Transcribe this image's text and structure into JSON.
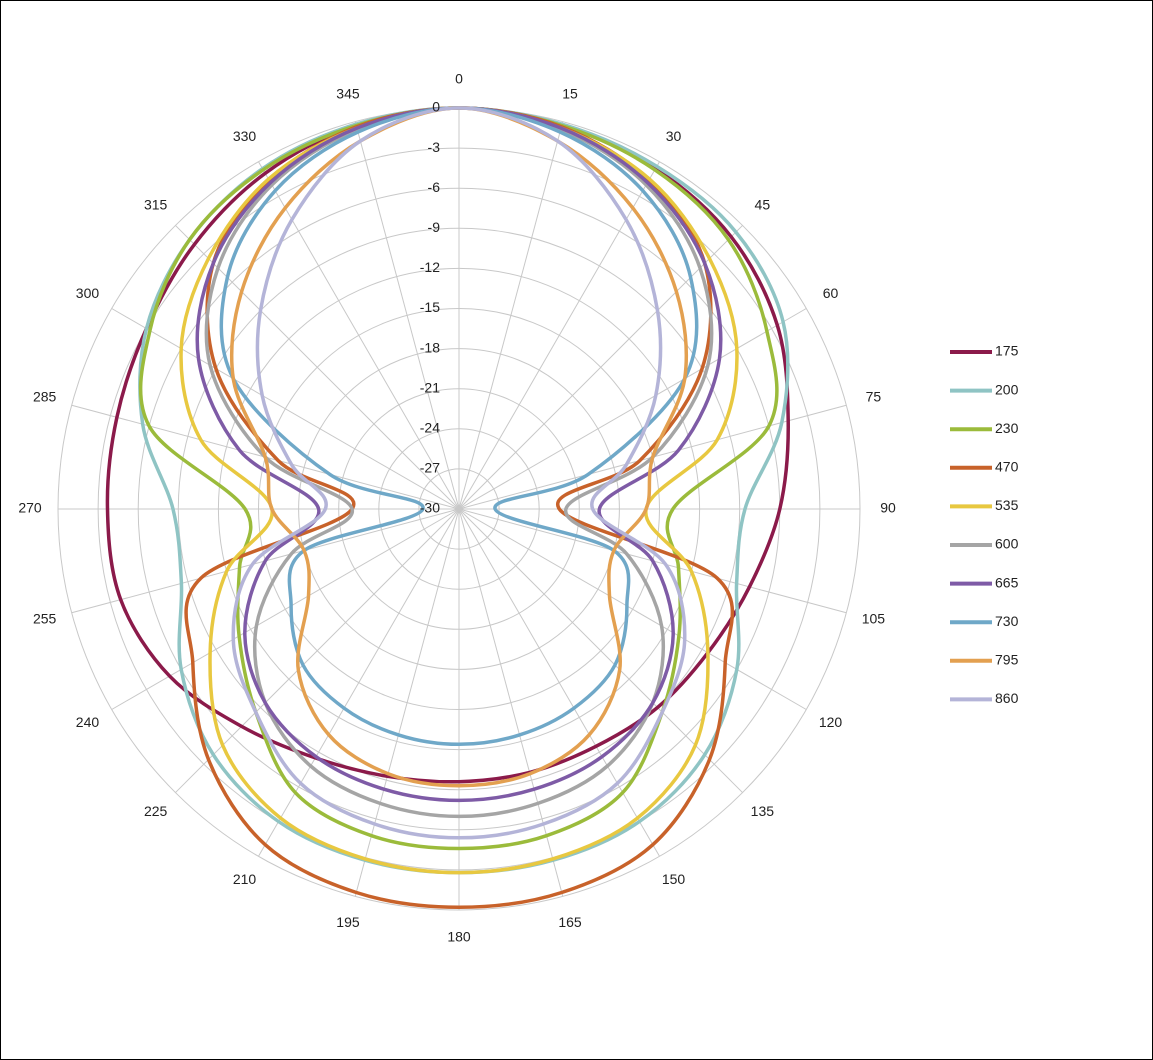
{
  "chart_data": {
    "type": "polar",
    "angles": [
      0,
      15,
      30,
      45,
      60,
      75,
      90,
      105,
      120,
      135,
      150,
      165,
      180,
      195,
      210,
      225,
      240,
      255,
      270,
      285,
      300,
      315,
      330,
      345
    ],
    "rlim": [
      -30,
      0
    ],
    "rticks": [
      -30,
      -27,
      -24,
      -21,
      -18,
      -15,
      -12,
      -9,
      -6,
      -3,
      0
    ],
    "grid": true,
    "legend": "right",
    "series": [
      {
        "name": "175",
        "color": "#8b1a4a",
        "values": [
          0,
          -0.3,
          -0.6,
          -1.2,
          -2.5,
          -4.5,
          -6,
          -7.5,
          -8.5,
          -9,
          -9.5,
          -9.6,
          -9.6,
          -9.3,
          -8.5,
          -7,
          -5,
          -3.8,
          -3.7,
          -3.5,
          -3,
          -2,
          -1,
          -0.3
        ]
      },
      {
        "name": "200",
        "color": "#8fc4c4",
        "values": [
          0,
          -0.2,
          -0.4,
          -0.7,
          -2,
          -5,
          -8.6,
          -8.5,
          -6,
          -4,
          -3,
          -2.8,
          -2.8,
          -2.8,
          -3,
          -4,
          -6,
          -8.5,
          -8.6,
          -5.5,
          -3,
          -1.5,
          -0.6,
          -0.2
        ]
      },
      {
        "name": "230",
        "color": "#9bbb3b",
        "values": [
          0,
          -0.3,
          -0.7,
          -1.5,
          -3.4,
          -6,
          -14,
          -13,
          -11,
          -8.5,
          -5.5,
          -4.7,
          -4.6,
          -4.7,
          -5.5,
          -8.5,
          -11,
          -13,
          -14,
          -6,
          -3.3,
          -1.5,
          -0.7,
          -0.3
        ]
      },
      {
        "name": "470",
        "color": "#c8622a",
        "values": [
          0,
          -0.4,
          -1.6,
          -4,
          -9,
          -16,
          -22.5,
          -10,
          -7,
          -3.5,
          -1,
          -0.3,
          -0.2,
          -0.3,
          -1,
          -3.5,
          -7,
          -10,
          -22,
          -16,
          -9,
          -4,
          -1.6,
          -0.4
        ]
      },
      {
        "name": "535",
        "color": "#e8c840",
        "values": [
          0,
          -0.5,
          -1.5,
          -3.5,
          -6,
          -10,
          -16,
          -12,
          -8.5,
          -5,
          -3.3,
          -2.9,
          -2.8,
          -2.9,
          -3.3,
          -5,
          -8.5,
          -12,
          -16,
          -10,
          -6,
          -3.5,
          -1.5,
          -0.5
        ]
      },
      {
        "name": "600",
        "color": "#a5a5a5",
        "values": [
          0,
          -0.6,
          -2,
          -4.5,
          -8.5,
          -15,
          -22,
          -17,
          -12.5,
          -9.5,
          -7.8,
          -7.2,
          -7,
          -7.2,
          -7.8,
          -9.5,
          -12.5,
          -17,
          -22,
          -15,
          -8.5,
          -4.5,
          -2,
          -0.6
        ]
      },
      {
        "name": "665",
        "color": "#7e5ba6",
        "values": [
          0,
          -0.5,
          -1.8,
          -4,
          -7.5,
          -13,
          -19.5,
          -15,
          -11.5,
          -9.5,
          -8.6,
          -8.3,
          -8.2,
          -8.3,
          -8.6,
          -9.5,
          -11.5,
          -15,
          -19.5,
          -13,
          -7.5,
          -4,
          -1.8,
          -0.5
        ]
      },
      {
        "name": "730",
        "color": "#6fa8c8",
        "values": [
          0,
          -0.8,
          -2.5,
          -5.5,
          -10.5,
          -20,
          -27.3,
          -18,
          -15.5,
          -13.5,
          -12.8,
          -12.5,
          -12.4,
          -12.5,
          -12.8,
          -13.5,
          -15.5,
          -18,
          -27.3,
          -20,
          -10.5,
          -5.5,
          -2.5,
          -0.8
        ]
      },
      {
        "name": "795",
        "color": "#e3a050",
        "values": [
          0,
          -1.5,
          -4,
          -7,
          -10.5,
          -15,
          -16,
          -18,
          -17,
          -13,
          -10.5,
          -9.5,
          -9.3,
          -9.5,
          -10.5,
          -13,
          -17,
          -18,
          -16,
          -15,
          -10.5,
          -7,
          -4,
          -1.5
        ]
      },
      {
        "name": "860",
        "color": "#b4b4d8",
        "values": [
          0,
          -1.5,
          -5,
          -9,
          -13,
          -17,
          -20,
          -14,
          -10.5,
          -8.5,
          -6.3,
          -5.6,
          -5.4,
          -5.6,
          -6.3,
          -8.5,
          -10.5,
          -14,
          -20,
          -17,
          -13,
          -9,
          -5,
          -1.5
        ]
      }
    ]
  }
}
